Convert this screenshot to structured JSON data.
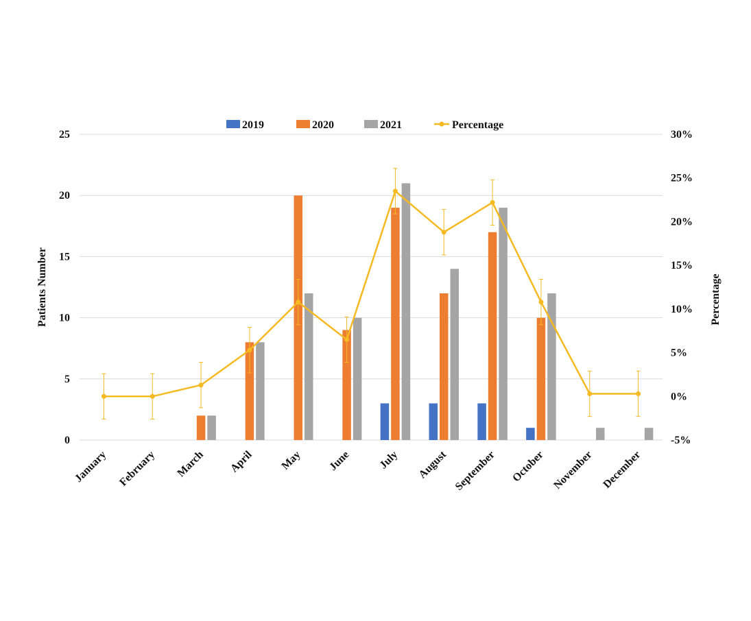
{
  "chart_data": {
    "type": "bar",
    "title": "",
    "categories": [
      "January",
      "February",
      "March",
      "April",
      "May",
      "June",
      "July",
      "August",
      "September",
      "October",
      "November",
      "December"
    ],
    "series": [
      {
        "name": "2019",
        "type": "bar",
        "color": "#4472C4",
        "values": [
          0,
          0,
          0,
          0,
          0,
          0,
          3,
          3,
          3,
          1,
          0,
          0
        ]
      },
      {
        "name": "2020",
        "type": "bar",
        "color": "#ED7D31",
        "values": [
          0,
          0,
          2,
          8,
          20,
          9,
          19,
          12,
          17,
          10,
          0,
          0
        ]
      },
      {
        "name": "2021",
        "type": "bar",
        "color": "#A5A5A5",
        "values": [
          0,
          0,
          2,
          8,
          12,
          10,
          21,
          14,
          19,
          12,
          1,
          1
        ]
      },
      {
        "name": "Percentage",
        "type": "line",
        "axis": "right",
        "color": "#F5B921",
        "values": [
          0,
          0,
          1.3,
          5.3,
          10.8,
          6.5,
          23.5,
          18.8,
          22.2,
          10.8,
          0.3,
          0.3
        ],
        "error": [
          2.6,
          2.6,
          2.6,
          2.6,
          2.6,
          2.6,
          2.6,
          2.6,
          2.6,
          2.6,
          2.6,
          2.6
        ]
      }
    ],
    "y_left": {
      "label": "Patients Number",
      "min": 0,
      "max": 25,
      "ticks": [
        "0",
        "5",
        "10",
        "15",
        "20",
        "25"
      ]
    },
    "y_right": {
      "label": "Percentage",
      "min": -5,
      "max": 30,
      "ticks": [
        "-5%",
        "0%",
        "5%",
        "10%",
        "15%",
        "20%",
        "25%",
        "30%"
      ]
    },
    "grid": true,
    "legend_position": "top"
  }
}
